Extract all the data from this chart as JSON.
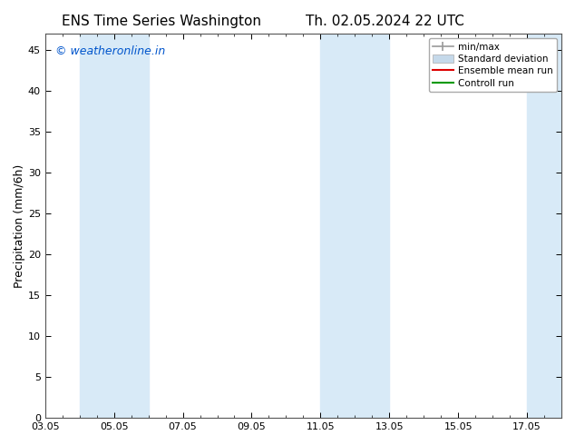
{
  "title_left": "ENS Time Series Washington",
  "title_right": "Th. 02.05.2024 22 UTC",
  "ylabel": "Precipitation (mm/6h)",
  "xlim": [
    3.05,
    18.05
  ],
  "ylim": [
    0,
    47
  ],
  "yticks": [
    0,
    5,
    10,
    15,
    20,
    25,
    30,
    35,
    40,
    45
  ],
  "xtick_labels": [
    "03.05",
    "05.05",
    "07.05",
    "09.05",
    "11.05",
    "13.05",
    "15.05",
    "17.05"
  ],
  "xtick_positions": [
    3.05,
    5.05,
    7.05,
    9.05,
    11.05,
    13.05,
    15.05,
    17.05
  ],
  "watermark": "© weatheronline.in",
  "watermark_color": "#0055cc",
  "background_color": "#ffffff",
  "plot_bg_color": "#ffffff",
  "shaded_bands": [
    {
      "x_start": 4.05,
      "x_end": 6.05,
      "color": "#d8eaf7"
    },
    {
      "x_start": 11.05,
      "x_end": 13.05,
      "color": "#d8eaf7"
    },
    {
      "x_start": 17.05,
      "x_end": 18.05,
      "color": "#d8eaf7"
    }
  ],
  "legend_entries": [
    {
      "label": "min/max",
      "color": "#999999",
      "style": "minmax"
    },
    {
      "label": "Standard deviation",
      "color": "#c5d9ea",
      "style": "patch"
    },
    {
      "label": "Ensemble mean run",
      "color": "#dd0000",
      "style": "line"
    },
    {
      "label": "Controll run",
      "color": "#009900",
      "style": "line"
    }
  ],
  "title_fontsize": 11,
  "axis_label_fontsize": 9,
  "tick_fontsize": 8,
  "watermark_fontsize": 9,
  "legend_fontsize": 7.5
}
